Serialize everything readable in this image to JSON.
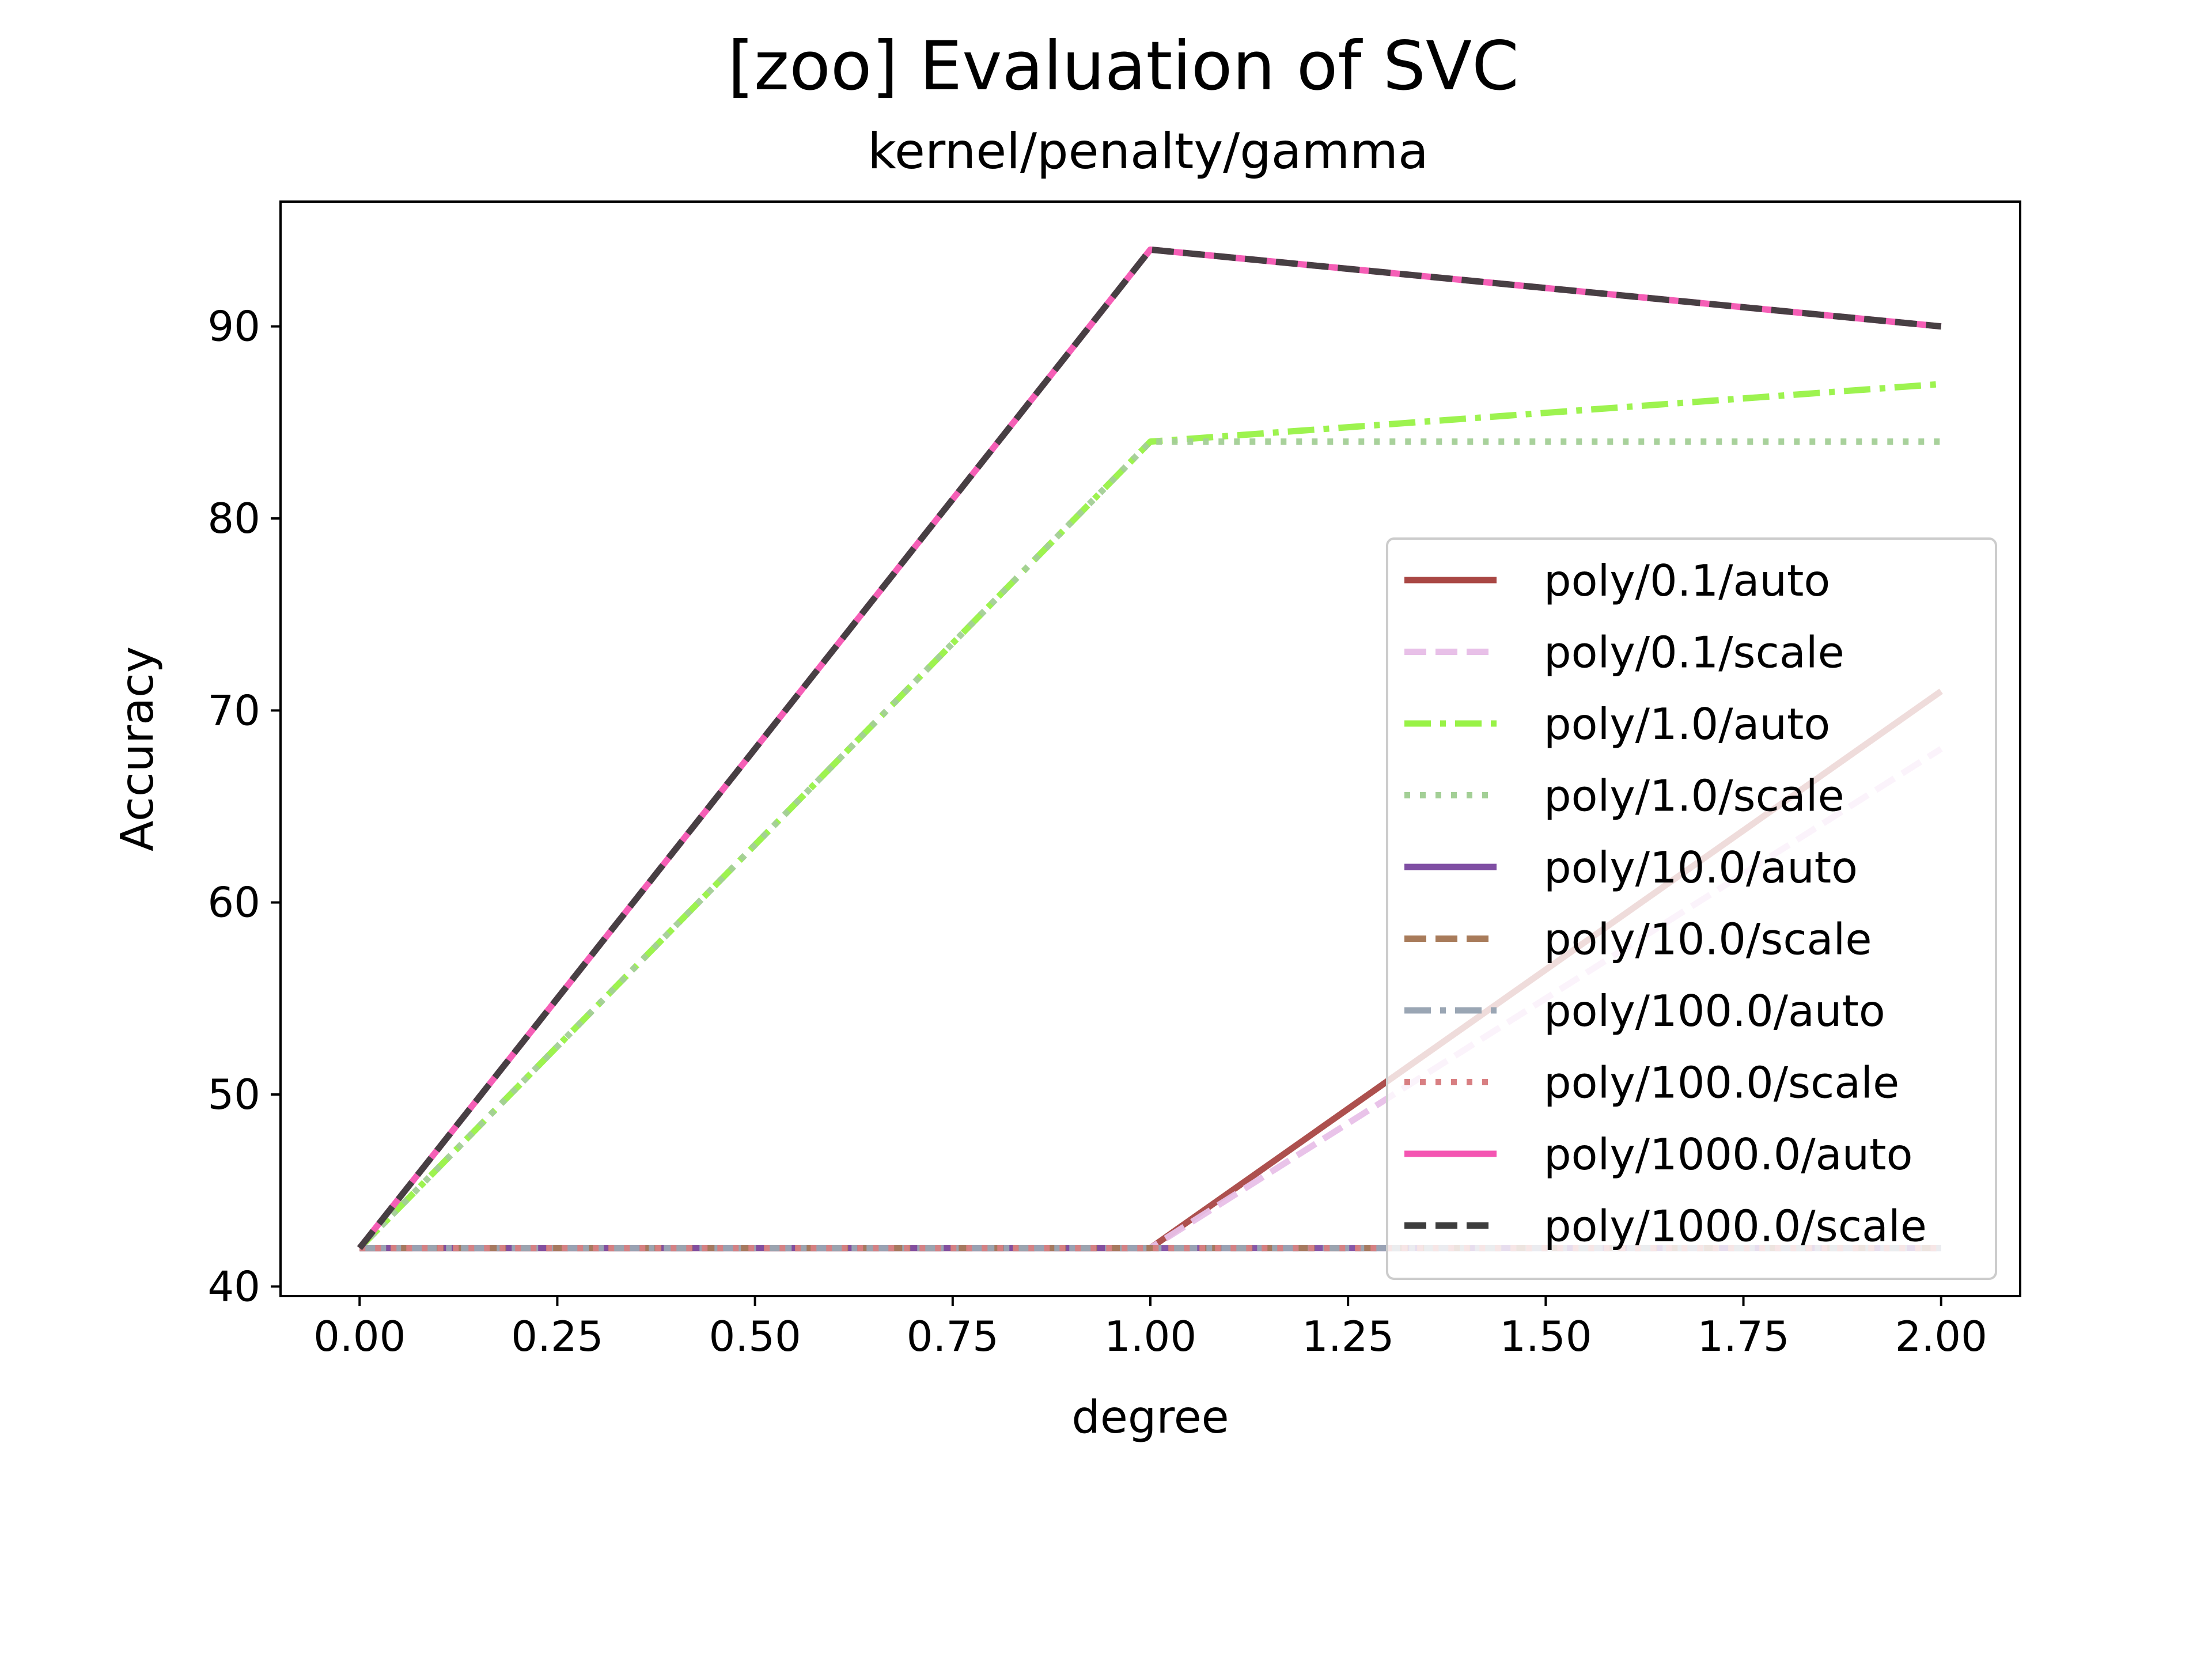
{
  "chart_data": {
    "type": "line",
    "title": "[zoo] Evaluation of SVC",
    "subtitle": "kernel/penalty/gamma",
    "xlabel": "degree",
    "ylabel": "Accuracy",
    "xlim": [
      -0.1,
      2.1
    ],
    "ylim": [
      39.5,
      96.5
    ],
    "x": [
      0,
      1,
      2
    ],
    "xticks": [
      0,
      0.25,
      0.5,
      0.75,
      1,
      1.25,
      1.5,
      1.75,
      2
    ],
    "xtick_labels": [
      "0.00",
      "0.25",
      "0.50",
      "0.75",
      "1.00",
      "1.25",
      "1.50",
      "1.75",
      "2.00"
    ],
    "yticks": [
      40,
      50,
      60,
      70,
      80,
      90
    ],
    "ytick_labels": [
      "40",
      "50",
      "60",
      "70",
      "80",
      "90"
    ],
    "grid": false,
    "legend_position": "center-right",
    "series": [
      {
        "name": "poly/0.1/auto",
        "values": [
          42,
          42,
          71
        ],
        "color": "#a94744",
        "dash": "solid"
      },
      {
        "name": "poly/0.1/scale",
        "values": [
          42,
          42,
          68
        ],
        "color": "#e8c0e8",
        "dash": "dashed"
      },
      {
        "name": "poly/1.0/auto",
        "values": [
          42,
          84,
          87
        ],
        "color": "#98f246",
        "dash": "dashdot"
      },
      {
        "name": "poly/1.0/scale",
        "values": [
          42,
          84,
          84
        ],
        "color": "#a3cf96",
        "dash": "dotted"
      },
      {
        "name": "poly/10.0/auto",
        "values": [
          42,
          42,
          42
        ],
        "color": "#7f4ea3",
        "dash": "solid"
      },
      {
        "name": "poly/10.0/scale",
        "values": [
          42,
          42,
          42
        ],
        "color": "#a87b5a",
        "dash": "dashed"
      },
      {
        "name": "poly/100.0/auto",
        "values": [
          42,
          42,
          42
        ],
        "color": "#9aa6b4",
        "dash": "dashdot"
      },
      {
        "name": "poly/100.0/scale",
        "values": [
          42,
          42,
          42
        ],
        "color": "#d87f82",
        "dash": "dotted"
      },
      {
        "name": "poly/1000.0/auto",
        "values": [
          42,
          94,
          90
        ],
        "color": "#f455b2",
        "dash": "solid"
      },
      {
        "name": "poly/1000.0/scale",
        "values": [
          42,
          94,
          90
        ],
        "color": "#3d3d3d",
        "dash": "dashed"
      }
    ]
  }
}
